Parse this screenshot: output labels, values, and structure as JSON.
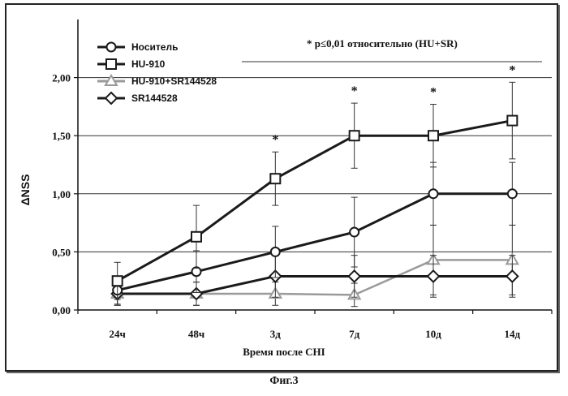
{
  "figure": {
    "caption": "Фиг.3"
  },
  "chart_data": {
    "type": "line",
    "title": "",
    "xlabel": "Время после CHI",
    "ylabel": "ΔNSS",
    "categories": [
      "24ч",
      "48ч",
      "3д",
      "7д",
      "10д",
      "14д"
    ],
    "ylim": [
      0,
      2.5
    ],
    "y_ticks": [
      "0,00",
      "0,50",
      "1,00",
      "1,50",
      "2,00"
    ],
    "grid": "horizontal",
    "legend_position": "top-left",
    "annotation": "* p≤0,01 относительно (HU+SR)",
    "significance_marker": "*",
    "significant_categories": [
      "3д",
      "7д",
      "10д",
      "14д"
    ],
    "series": [
      {
        "name": "Носитель",
        "marker": "circle",
        "color": "#1a1a1a",
        "values": [
          0.17,
          0.33,
          0.5,
          0.67,
          1.0,
          1.0
        ],
        "errors": [
          0.12,
          0.18,
          0.22,
          0.3,
          0.27,
          0.27
        ]
      },
      {
        "name": "HU-910",
        "marker": "square",
        "color": "#1a1a1a",
        "values": [
          0.25,
          0.63,
          1.13,
          1.5,
          1.5,
          1.63
        ],
        "errors": [
          0.16,
          0.27,
          0.23,
          0.28,
          0.27,
          0.33
        ]
      },
      {
        "name": "HU-910+SR144528",
        "marker": "triangle",
        "color": "#9a9a9a",
        "values": [
          0.14,
          0.14,
          0.14,
          0.13,
          0.43,
          0.43
        ],
        "errors": [
          0.1,
          0.1,
          0.1,
          0.1,
          0.3,
          0.3
        ]
      },
      {
        "name": "SR144528",
        "marker": "diamond",
        "color": "#1a1a1a",
        "values": [
          0.14,
          0.14,
          0.29,
          0.29,
          0.29,
          0.29
        ],
        "errors": [
          0.1,
          0.1,
          0.18,
          0.18,
          0.18,
          0.18
        ]
      }
    ]
  }
}
